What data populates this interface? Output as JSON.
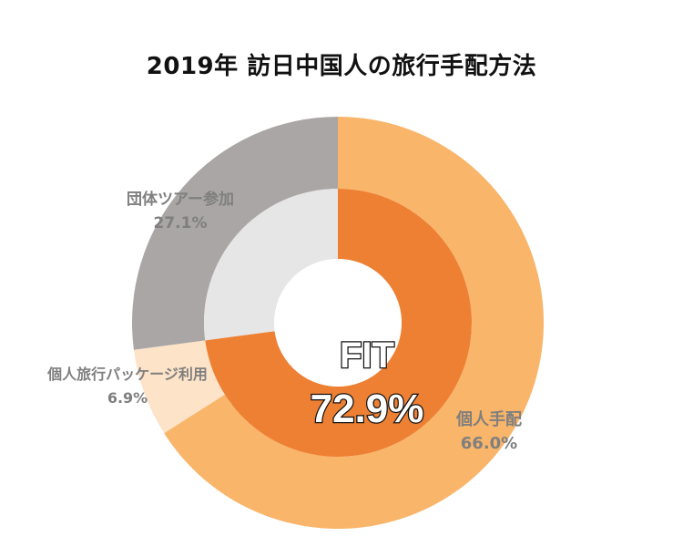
{
  "chart_data": {
    "type": "pie",
    "title": "2019年 訪日中国人の旅行手配方法",
    "outer_ring": [
      {
        "name": "個人手配",
        "value": 66.0,
        "label": "66.0%",
        "color": "#f9b56a"
      },
      {
        "name": "個人旅行パッケージ利用",
        "value": 6.9,
        "label": "6.9%",
        "color": "#fde3c8"
      },
      {
        "name": "団体ツアー参加",
        "value": 27.1,
        "label": "27.1%",
        "color": "#aaa6a5"
      }
    ],
    "inner_ring": [
      {
        "name": "FIT",
        "value": 72.9,
        "label": "72.9%",
        "color": "#ee8033"
      },
      {
        "name": "",
        "value": 27.1,
        "color": "#e6e6e6"
      }
    ],
    "center": {
      "title": "FIT",
      "value": "72.9%"
    }
  }
}
